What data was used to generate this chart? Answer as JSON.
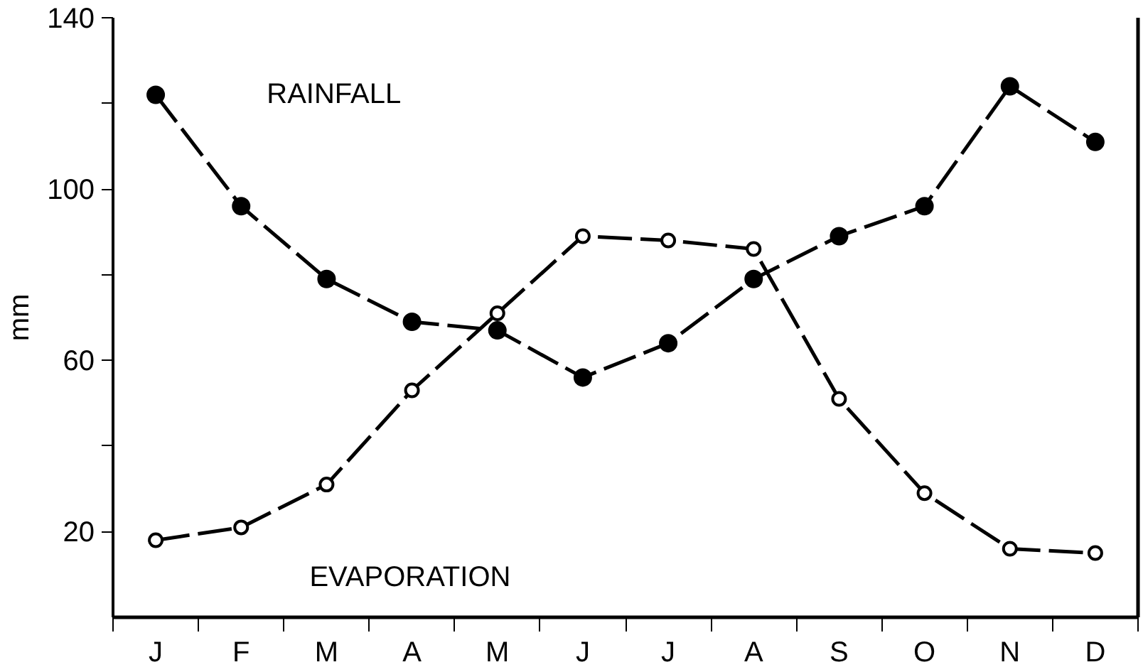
{
  "chart_data": {
    "type": "line",
    "ylabel": "mm",
    "categories": [
      "J",
      "F",
      "M",
      "A",
      "M",
      "J",
      "J",
      "A",
      "S",
      "O",
      "N",
      "D"
    ],
    "series": [
      {
        "name": "RAINFALL",
        "color": "#000000",
        "values": [
          122,
          96,
          79,
          69,
          67,
          56,
          64,
          79,
          89,
          96,
          124,
          111
        ]
      },
      {
        "name": "EVAPORATION",
        "color": "#000000",
        "values": [
          18,
          21,
          31,
          53,
          71,
          89,
          88,
          86,
          51,
          29,
          16,
          15
        ]
      }
    ],
    "ylim": [
      0,
      140
    ],
    "yticks": [
      20,
      {
        "value": 40,
        "label": null
      },
      60,
      {
        "value": 80,
        "label": null
      },
      100,
      {
        "value": 120,
        "label": null
      },
      140
    ],
    "grid": false,
    "marker": "circle",
    "line_style": "dashed"
  }
}
